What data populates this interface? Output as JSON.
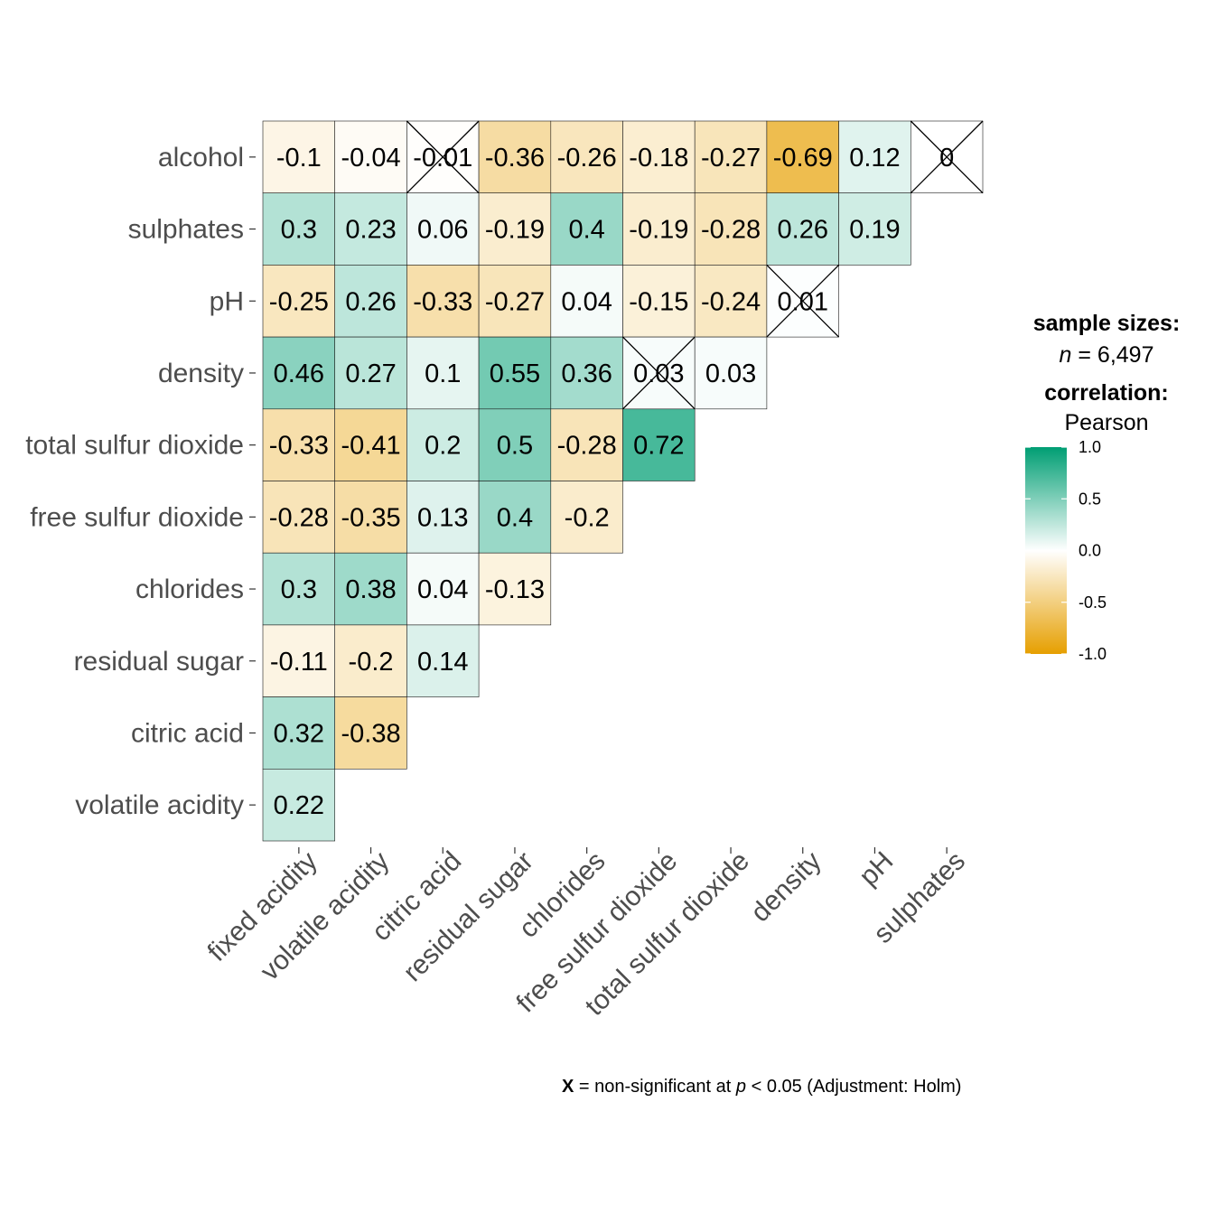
{
  "chart_data": {
    "type": "heatmap",
    "variables": [
      "fixed acidity",
      "volatile acidity",
      "citric acid",
      "residual sugar",
      "chlorides",
      "free sulfur dioxide",
      "total sulfur dioxide",
      "density",
      "pH",
      "sulphates",
      "alcohol"
    ],
    "x_categories": [
      "fixed acidity",
      "volatile acidity",
      "citric acid",
      "residual sugar",
      "chlorides",
      "free sulfur dioxide",
      "total sulfur dioxide",
      "density",
      "pH",
      "sulphates"
    ],
    "y_categories": [
      "alcohol",
      "sulphates",
      "pH",
      "density",
      "total sulfur dioxide",
      "free sulfur dioxide",
      "chlorides",
      "residual sugar",
      "citric acid",
      "volatile acidity"
    ],
    "cells": [
      {
        "row": "alcohol",
        "col": "fixed acidity",
        "value": -0.1,
        "label": "-0.1",
        "nonsig": false
      },
      {
        "row": "alcohol",
        "col": "volatile acidity",
        "value": -0.04,
        "label": "-0.04",
        "nonsig": false
      },
      {
        "row": "alcohol",
        "col": "citric acid",
        "value": -0.01,
        "label": "-0.01",
        "nonsig": true
      },
      {
        "row": "alcohol",
        "col": "residual sugar",
        "value": -0.36,
        "label": "-0.36",
        "nonsig": false
      },
      {
        "row": "alcohol",
        "col": "chlorides",
        "value": -0.26,
        "label": "-0.26",
        "nonsig": false
      },
      {
        "row": "alcohol",
        "col": "free sulfur dioxide",
        "value": -0.18,
        "label": "-0.18",
        "nonsig": false
      },
      {
        "row": "alcohol",
        "col": "total sulfur dioxide",
        "value": -0.27,
        "label": "-0.27",
        "nonsig": false
      },
      {
        "row": "alcohol",
        "col": "density",
        "value": -0.69,
        "label": "-0.69",
        "nonsig": false
      },
      {
        "row": "alcohol",
        "col": "pH",
        "value": 0.12,
        "label": "0.12",
        "nonsig": false
      },
      {
        "row": "alcohol",
        "col": "sulphates",
        "value": 0,
        "label": "0",
        "nonsig": true
      },
      {
        "row": "sulphates",
        "col": "fixed acidity",
        "value": 0.3,
        "label": "0.3",
        "nonsig": false
      },
      {
        "row": "sulphates",
        "col": "volatile acidity",
        "value": 0.23,
        "label": "0.23",
        "nonsig": false
      },
      {
        "row": "sulphates",
        "col": "citric acid",
        "value": 0.06,
        "label": "0.06",
        "nonsig": false
      },
      {
        "row": "sulphates",
        "col": "residual sugar",
        "value": -0.19,
        "label": "-0.19",
        "nonsig": false
      },
      {
        "row": "sulphates",
        "col": "chlorides",
        "value": 0.4,
        "label": "0.4",
        "nonsig": false
      },
      {
        "row": "sulphates",
        "col": "free sulfur dioxide",
        "value": -0.19,
        "label": "-0.19",
        "nonsig": false
      },
      {
        "row": "sulphates",
        "col": "total sulfur dioxide",
        "value": -0.28,
        "label": "-0.28",
        "nonsig": false
      },
      {
        "row": "sulphates",
        "col": "density",
        "value": 0.26,
        "label": "0.26",
        "nonsig": false
      },
      {
        "row": "sulphates",
        "col": "pH",
        "value": 0.19,
        "label": "0.19",
        "nonsig": false
      },
      {
        "row": "pH",
        "col": "fixed acidity",
        "value": -0.25,
        "label": "-0.25",
        "nonsig": false
      },
      {
        "row": "pH",
        "col": "volatile acidity",
        "value": 0.26,
        "label": "0.26",
        "nonsig": false
      },
      {
        "row": "pH",
        "col": "citric acid",
        "value": -0.33,
        "label": "-0.33",
        "nonsig": false
      },
      {
        "row": "pH",
        "col": "residual sugar",
        "value": -0.27,
        "label": "-0.27",
        "nonsig": false
      },
      {
        "row": "pH",
        "col": "chlorides",
        "value": 0.04,
        "label": "0.04",
        "nonsig": false
      },
      {
        "row": "pH",
        "col": "free sulfur dioxide",
        "value": -0.15,
        "label": "-0.15",
        "nonsig": false
      },
      {
        "row": "pH",
        "col": "total sulfur dioxide",
        "value": -0.24,
        "label": "-0.24",
        "nonsig": false
      },
      {
        "row": "pH",
        "col": "density",
        "value": 0.01,
        "label": "0.01",
        "nonsig": true
      },
      {
        "row": "density",
        "col": "fixed acidity",
        "value": 0.46,
        "label": "0.46",
        "nonsig": false
      },
      {
        "row": "density",
        "col": "volatile acidity",
        "value": 0.27,
        "label": "0.27",
        "nonsig": false
      },
      {
        "row": "density",
        "col": "citric acid",
        "value": 0.1,
        "label": "0.1",
        "nonsig": false
      },
      {
        "row": "density",
        "col": "residual sugar",
        "value": 0.55,
        "label": "0.55",
        "nonsig": false
      },
      {
        "row": "density",
        "col": "chlorides",
        "value": 0.36,
        "label": "0.36",
        "nonsig": false
      },
      {
        "row": "density",
        "col": "free sulfur dioxide",
        "value": 0.03,
        "label": "0.03",
        "nonsig": true
      },
      {
        "row": "density",
        "col": "total sulfur dioxide",
        "value": 0.03,
        "label": "0.03",
        "nonsig": false
      },
      {
        "row": "total sulfur dioxide",
        "col": "fixed acidity",
        "value": -0.33,
        "label": "-0.33",
        "nonsig": false
      },
      {
        "row": "total sulfur dioxide",
        "col": "volatile acidity",
        "value": -0.41,
        "label": "-0.41",
        "nonsig": false
      },
      {
        "row": "total sulfur dioxide",
        "col": "citric acid",
        "value": 0.2,
        "label": "0.2",
        "nonsig": false
      },
      {
        "row": "total sulfur dioxide",
        "col": "residual sugar",
        "value": 0.5,
        "label": "0.5",
        "nonsig": false
      },
      {
        "row": "total sulfur dioxide",
        "col": "chlorides",
        "value": -0.28,
        "label": "-0.28",
        "nonsig": false
      },
      {
        "row": "total sulfur dioxide",
        "col": "free sulfur dioxide",
        "value": 0.72,
        "label": "0.72",
        "nonsig": false
      },
      {
        "row": "free sulfur dioxide",
        "col": "fixed acidity",
        "value": -0.28,
        "label": "-0.28",
        "nonsig": false
      },
      {
        "row": "free sulfur dioxide",
        "col": "volatile acidity",
        "value": -0.35,
        "label": "-0.35",
        "nonsig": false
      },
      {
        "row": "free sulfur dioxide",
        "col": "citric acid",
        "value": 0.13,
        "label": "0.13",
        "nonsig": false
      },
      {
        "row": "free sulfur dioxide",
        "col": "residual sugar",
        "value": 0.4,
        "label": "0.4",
        "nonsig": false
      },
      {
        "row": "free sulfur dioxide",
        "col": "chlorides",
        "value": -0.2,
        "label": "-0.2",
        "nonsig": false
      },
      {
        "row": "chlorides",
        "col": "fixed acidity",
        "value": 0.3,
        "label": "0.3",
        "nonsig": false
      },
      {
        "row": "chlorides",
        "col": "volatile acidity",
        "value": 0.38,
        "label": "0.38",
        "nonsig": false
      },
      {
        "row": "chlorides",
        "col": "citric acid",
        "value": 0.04,
        "label": "0.04",
        "nonsig": false
      },
      {
        "row": "chlorides",
        "col": "residual sugar",
        "value": -0.13,
        "label": "-0.13",
        "nonsig": false
      },
      {
        "row": "residual sugar",
        "col": "fixed acidity",
        "value": -0.11,
        "label": "-0.11",
        "nonsig": false
      },
      {
        "row": "residual sugar",
        "col": "volatile acidity",
        "value": -0.2,
        "label": "-0.2",
        "nonsig": false
      },
      {
        "row": "residual sugar",
        "col": "citric acid",
        "value": 0.14,
        "label": "0.14",
        "nonsig": false
      },
      {
        "row": "citric acid",
        "col": "fixed acidity",
        "value": 0.32,
        "label": "0.32",
        "nonsig": false
      },
      {
        "row": "citric acid",
        "col": "volatile acidity",
        "value": -0.38,
        "label": "-0.38",
        "nonsig": false
      },
      {
        "row": "volatile acidity",
        "col": "fixed acidity",
        "value": 0.22,
        "label": "0.22",
        "nonsig": false
      }
    ],
    "color_scale": {
      "low": "#E69F00",
      "mid": "#FFFFFF",
      "high": "#009E73",
      "limits": [
        -1.0,
        1.0
      ],
      "breaks": [
        "1.0",
        "0.5",
        "0.0",
        "-0.5",
        "-1.0"
      ]
    },
    "legend": {
      "sample_title": "sample sizes:",
      "n_label": "n",
      "n_value": " = 6,497",
      "corr_title": "correlation:",
      "corr_method": "Pearson",
      "position": "right"
    },
    "caption": {
      "marker": "X",
      "text_before": " = non-significant at ",
      "p": "p",
      "text_after": " < 0.05 (Adjustment: Holm)"
    }
  }
}
